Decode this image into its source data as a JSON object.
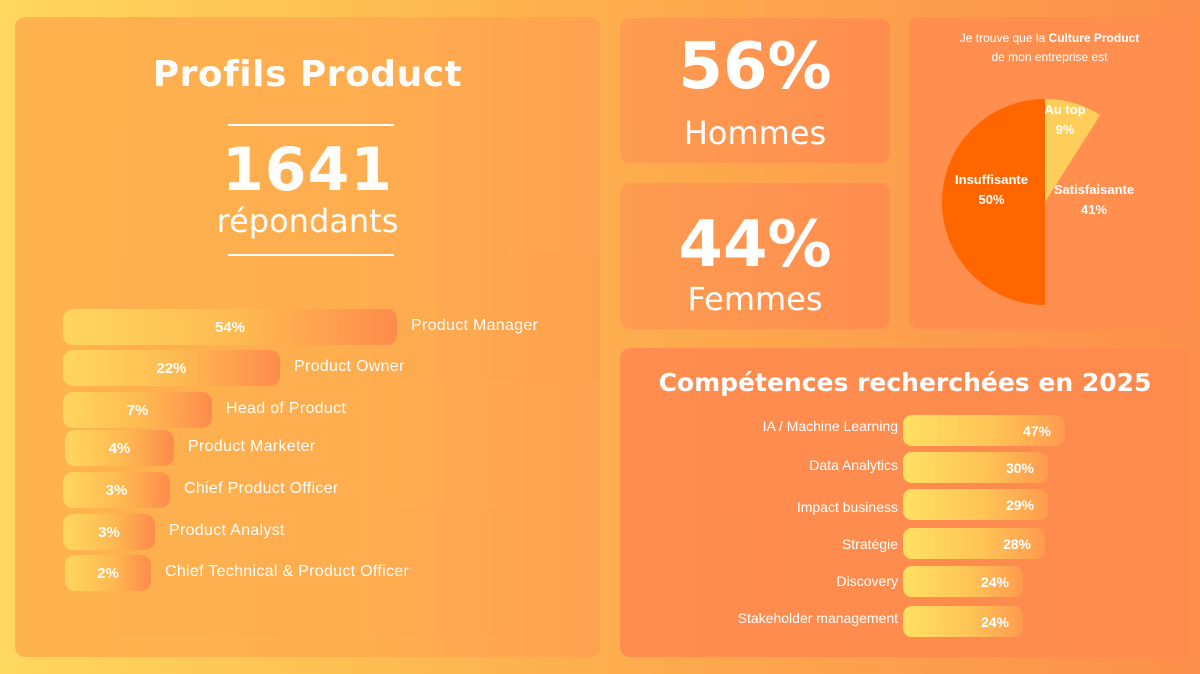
{
  "profiles": {
    "title": "Profils Product",
    "count": "1641",
    "count_label": "répondants"
  },
  "gender": {
    "men_pct": "56%",
    "men_label": "Hommes",
    "women_pct": "44%",
    "women_label": "Femmes"
  },
  "culture": {
    "line1_prefix": "Je trouve que la ",
    "line1_bold": "Culture Product",
    "line2": "de mon entreprise est"
  },
  "skills": {
    "title": "Compétences recherchées en 2025"
  },
  "chart_data": [
    {
      "type": "bar",
      "orientation": "horizontal",
      "categories": [
        "Product Manager",
        "Product Owner",
        "Head of Product",
        "Product Marketer",
        "Chief Product Officer",
        "Product Analyst",
        "Chief Technical & Product Officer"
      ],
      "values": [
        54,
        22,
        7,
        4,
        3,
        3,
        2
      ],
      "value_labels": [
        "54%",
        "22%",
        "7%",
        "4%",
        "3%",
        "3%",
        "2%"
      ],
      "unit": "%"
    },
    {
      "type": "pie",
      "categories": [
        "Insuffisante",
        "Satisfaisante",
        "Au top"
      ],
      "values": [
        50,
        41,
        9
      ],
      "value_labels": [
        "50%",
        "41%",
        "9%"
      ],
      "colors": [
        "#ff6600",
        "#ff8e4f",
        "#ffcd5a"
      ]
    },
    {
      "type": "bar",
      "orientation": "horizontal",
      "categories": [
        "IA / Machine Learning",
        "Data Analytics",
        "Impact business",
        "Stratégie",
        "Discovery",
        "Stakeholder management"
      ],
      "values": [
        47,
        30,
        29,
        28,
        24,
        24
      ],
      "value_labels": [
        "47%",
        "30%",
        "29%",
        "28%",
        "24%",
        "24%"
      ],
      "unit": "%"
    }
  ]
}
